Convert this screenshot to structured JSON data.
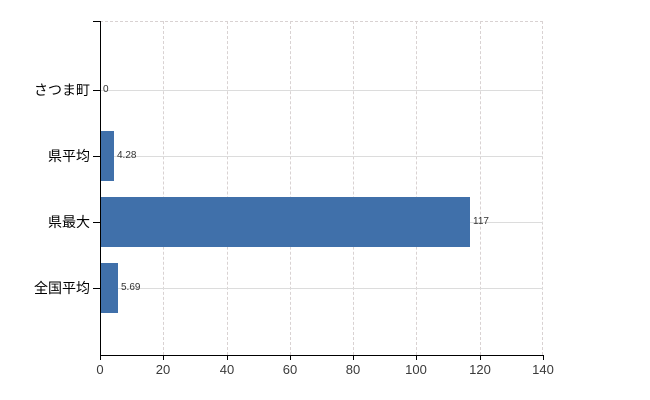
{
  "chart_data": {
    "type": "bar",
    "orientation": "horizontal",
    "title": "",
    "xlabel": "",
    "ylabel": "",
    "categories": [
      "さつま町",
      "県平均",
      "県最大",
      "全国平均"
    ],
    "values": [
      0,
      4.28,
      117,
      5.69
    ],
    "value_labels": [
      "0",
      "4.28",
      "117",
      "5.69"
    ],
    "xlim": [
      0,
      140
    ],
    "xticks": [
      0,
      20,
      40,
      60,
      80,
      100,
      120,
      140
    ],
    "xtick_labels": [
      "0",
      "20",
      "40",
      "60",
      "80",
      "100",
      "120",
      "140"
    ],
    "grid": true,
    "legend": false,
    "colors": {
      "bar": "#4070aa",
      "axis": "#000000",
      "hgrid": "#dcdcdc",
      "vgrid_dashed": "#d9d2d2",
      "category_label": "#000000",
      "value_label": "#333333",
      "tick_label": "#3a3a3a",
      "background": "#ffffff"
    }
  }
}
